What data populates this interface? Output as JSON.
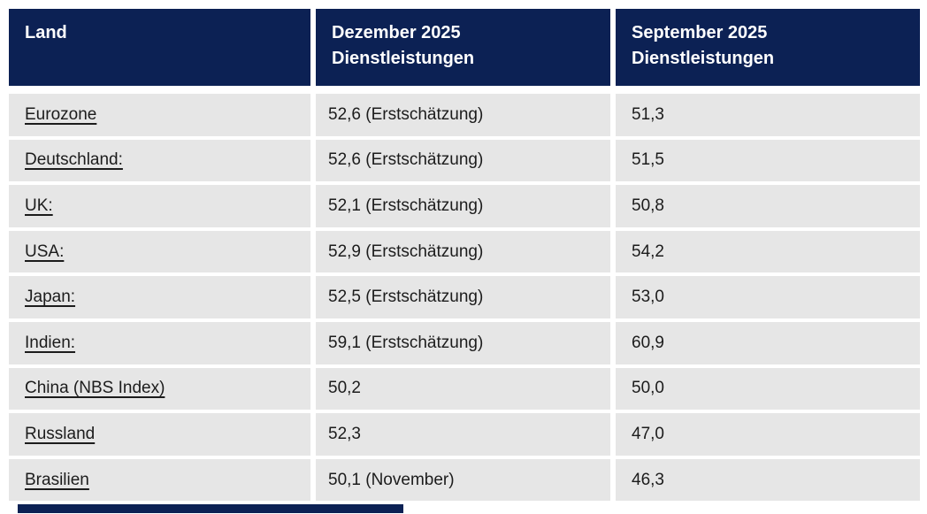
{
  "table": {
    "columns": [
      {
        "label": "Land"
      },
      {
        "label": "Dezember 2025\nDienstleistungen"
      },
      {
        "label": "September 2025\nDienstleistungen"
      }
    ],
    "rows": [
      {
        "land": "Eurozone",
        "dezember": "52,6 (Erstschätzung)",
        "september": "51,3"
      },
      {
        "land": "Deutschland:",
        "dezember": "52,6 (Erstschätzung)",
        "september": "51,5"
      },
      {
        "land": "UK:",
        "dezember": "52,1 (Erstschätzung)",
        "september": "50,8"
      },
      {
        "land": "USA:",
        "dezember": "52,9 (Erstschätzung)",
        "september": "54,2"
      },
      {
        "land": "Japan:",
        "dezember": "52,5 (Erstschätzung)",
        "september": "53,0"
      },
      {
        "land": "Indien:",
        "dezember": "59,1 (Erstschätzung)",
        "september": "60,9"
      },
      {
        "land": "China (NBS Index)",
        "dezember": "50,2",
        "september": "50,0"
      },
      {
        "land": "Russland",
        "dezember": "52,3",
        "september": "47,0"
      },
      {
        "land": "Brasilien",
        "dezember": "50,1 (November)",
        "september": "46,3"
      }
    ]
  },
  "colors": {
    "header_bg": "#0c2154",
    "header_text": "#ffffff",
    "row_bg": "#e6e6e6",
    "body_text": "#1c1c1c",
    "accent_bar": "#0c2154"
  }
}
